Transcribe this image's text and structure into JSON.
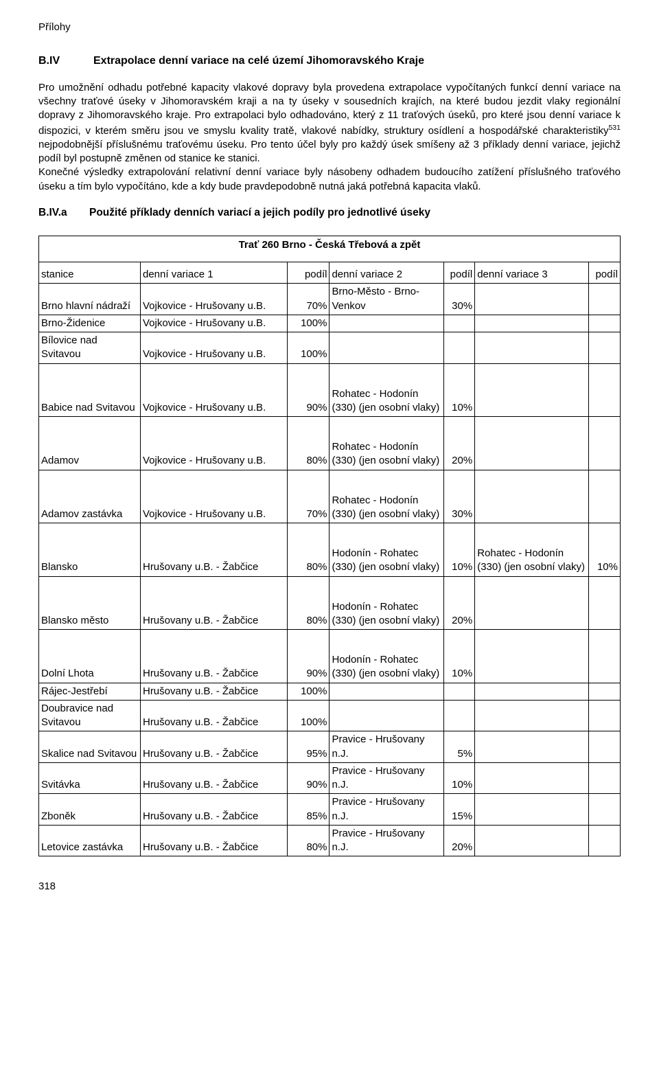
{
  "header": "Přílohy",
  "section": {
    "number": "B.IV",
    "title": "Extrapolace denní variace na celé území Jihomoravského Kraje"
  },
  "paragraph1": "Pro umožnění odhadu potřebné kapacity vlakové dopravy byla provedena extrapolace vypočítaných funkcí denní variace na všechny traťové úseky v Jihomoravském kraji a na ty úseky v sousedních krajích, na které budou jezdit vlaky regionální dopravy z Jihomoravského kraje. Pro extrapolaci bylo odhadováno, který z 11 traťových úseků, pro které jsou denní variace k dispozici, v kterém směru jsou ve smyslu kvality tratě, vlakové nabídky, struktury osídlení a hospodářské charakteristiky",
  "sup": "531",
  "paragraph1b": " nejpodobnější příslušnému traťovému úseku. Pro tento účel byly pro každý úsek smíšeny až 3 příklady denní variace, jejichž podíl byl postupně změnen od stanice ke stanici.",
  "paragraph2": "Konečné výsledky extrapolování relativní denní variace byly násobeny odhadem budoucího zatížení příslušného traťového úseku a tím bylo vypočítáno, kde a kdy bude pravdepodobně nutná jaká potřebná kapacita vlaků.",
  "subsection": {
    "number": "B.IV.a",
    "title": "Použité příklady denních variací a jejich podíly pro jednotlivé úseky"
  },
  "table_title": "Trať 260 Brno - Česká Třebová a zpět",
  "columns": {
    "stanice": "stanice",
    "dv1": "denní variace 1",
    "p1": "podíl",
    "dv2": "denní variace 2",
    "p2": "podíl",
    "dv3": "denní variace 3",
    "p3": "podíl"
  },
  "rows": [
    {
      "stanice": "Brno hlavní nádraží",
      "dv1": "Vojkovice - Hrušovany u.B.",
      "p1": "70%",
      "dv2": "Brno-Město - Brno-Venkov",
      "p2": "30%",
      "dv3": "",
      "p3": "",
      "tall": false
    },
    {
      "stanice": "Brno-Židenice",
      "dv1": "Vojkovice - Hrušovany u.B.",
      "p1": "100%",
      "dv2": "",
      "p2": "",
      "dv3": "",
      "p3": "",
      "tall": false
    },
    {
      "stanice": "Bílovice nad Svitavou",
      "dv1": "Vojkovice - Hrušovany u.B.",
      "p1": "100%",
      "dv2": "",
      "p2": "",
      "dv3": "",
      "p3": "",
      "tall": false
    },
    {
      "stanice": "Babice nad Svitavou",
      "dv1": "Vojkovice - Hrušovany u.B.",
      "p1": "90%",
      "dv2": "Rohatec - Hodonín (330) (jen osobní vlaky)",
      "p2": "10%",
      "dv3": "",
      "p3": "",
      "tall": true
    },
    {
      "stanice": "Adamov",
      "dv1": "Vojkovice - Hrušovany u.B.",
      "p1": "80%",
      "dv2": "Rohatec - Hodonín (330) (jen osobní vlaky)",
      "p2": "20%",
      "dv3": "",
      "p3": "",
      "tall": true
    },
    {
      "stanice": "Adamov zastávka",
      "dv1": "Vojkovice - Hrušovany u.B.",
      "p1": "70%",
      "dv2": "Rohatec - Hodonín (330) (jen osobní vlaky)",
      "p2": "30%",
      "dv3": "",
      "p3": "",
      "tall": true
    },
    {
      "stanice": "Blansko",
      "dv1": "Hrušovany u.B. - Žabčice",
      "p1": "80%",
      "dv2": "Hodonín - Rohatec (330) (jen osobní vlaky)",
      "p2": "10%",
      "dv3": "Rohatec - Hodonín (330) (jen osobní vlaky)",
      "p3": "10%",
      "tall": true
    },
    {
      "stanice": "Blansko město",
      "dv1": "Hrušovany u.B. - Žabčice",
      "p1": "80%",
      "dv2": "Hodonín - Rohatec (330) (jen osobní vlaky)",
      "p2": "20%",
      "dv3": "",
      "p3": "",
      "tall": true
    },
    {
      "stanice": "Dolní Lhota",
      "dv1": "Hrušovany u.B. - Žabčice",
      "p1": "90%",
      "dv2": "Hodonín - Rohatec (330) (jen osobní vlaky)",
      "p2": "10%",
      "dv3": "",
      "p3": "",
      "tall": true
    },
    {
      "stanice": "Rájec-Jestřebí",
      "dv1": "Hrušovany u.B. - Žabčice",
      "p1": "100%",
      "dv2": "",
      "p2": "",
      "dv3": "",
      "p3": "",
      "tall": false
    },
    {
      "stanice": "Doubravice nad Svitavou",
      "dv1": "Hrušovany u.B. - Žabčice",
      "p1": "100%",
      "dv2": "",
      "p2": "",
      "dv3": "",
      "p3": "",
      "tall": false
    },
    {
      "stanice": "Skalice nad Svitavou",
      "dv1": "Hrušovany u.B. - Žabčice",
      "p1": "95%",
      "dv2": "Pravice - Hrušovany n.J.",
      "p2": "5%",
      "dv3": "",
      "p3": "",
      "tall": false
    },
    {
      "stanice": "Svitávka",
      "dv1": "Hrušovany u.B. - Žabčice",
      "p1": "90%",
      "dv2": "Pravice - Hrušovany n.J.",
      "p2": "10%",
      "dv3": "",
      "p3": "",
      "tall": false
    },
    {
      "stanice": "Zboněk",
      "dv1": "Hrušovany u.B. - Žabčice",
      "p1": "85%",
      "dv2": "Pravice - Hrušovany n.J.",
      "p2": "15%",
      "dv3": "",
      "p3": "",
      "tall": false
    },
    {
      "stanice": "Letovice zastávka",
      "dv1": "Hrušovany u.B. - Žabčice",
      "p1": "80%",
      "dv2": "Pravice - Hrušovany n.J.",
      "p2": "20%",
      "dv3": "",
      "p3": "",
      "tall": false
    }
  ],
  "page_number": "318"
}
